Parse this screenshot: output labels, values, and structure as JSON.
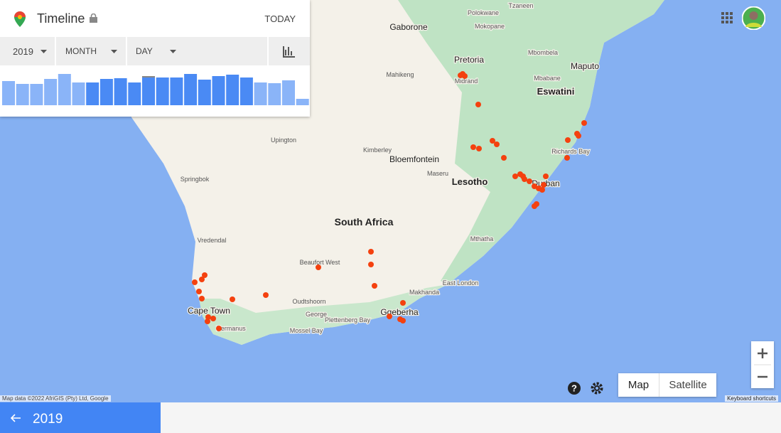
{
  "header": {
    "title": "Timeline",
    "today": "TODAY"
  },
  "filters": {
    "year": "2019",
    "month": "MONTH",
    "day": "DAY"
  },
  "histogram": {
    "values": [
      34,
      30,
      30,
      37,
      44,
      32,
      32,
      37,
      38,
      32,
      39,
      39,
      39,
      44,
      36,
      41,
      43,
      39,
      32,
      31,
      35,
      9,
      19
    ]
  },
  "map": {
    "labels": [
      "Polokwane",
      "Tzaneen",
      "Gaborone",
      "Mokopane",
      "Pretoria",
      "Mbombela",
      "Maputo",
      "Mahikeng",
      "Midrand",
      "Mbabane",
      "Eswatini",
      "Upington",
      "Kimberley",
      "Bloemfontein",
      "Richards Bay",
      "Maseru",
      "Lesotho",
      "Durban",
      "Springbok",
      "South Africa",
      "Mthatha",
      "Vredendal",
      "Beaufort West",
      "East London",
      "Makhanda",
      "Oudtshoorn",
      "Cape Town",
      "George",
      "Gqeberha",
      "Plettenberg Bay",
      "Hermanus",
      "Mossel Bay"
    ],
    "attribution": "Map data ©2022 AfriGIS (Pty) Ltd, Google",
    "map_button": "Map",
    "satellite_button": "Satellite",
    "shortcuts": "Keyboard shortcuts"
  },
  "footer": {
    "year": "2019"
  }
}
